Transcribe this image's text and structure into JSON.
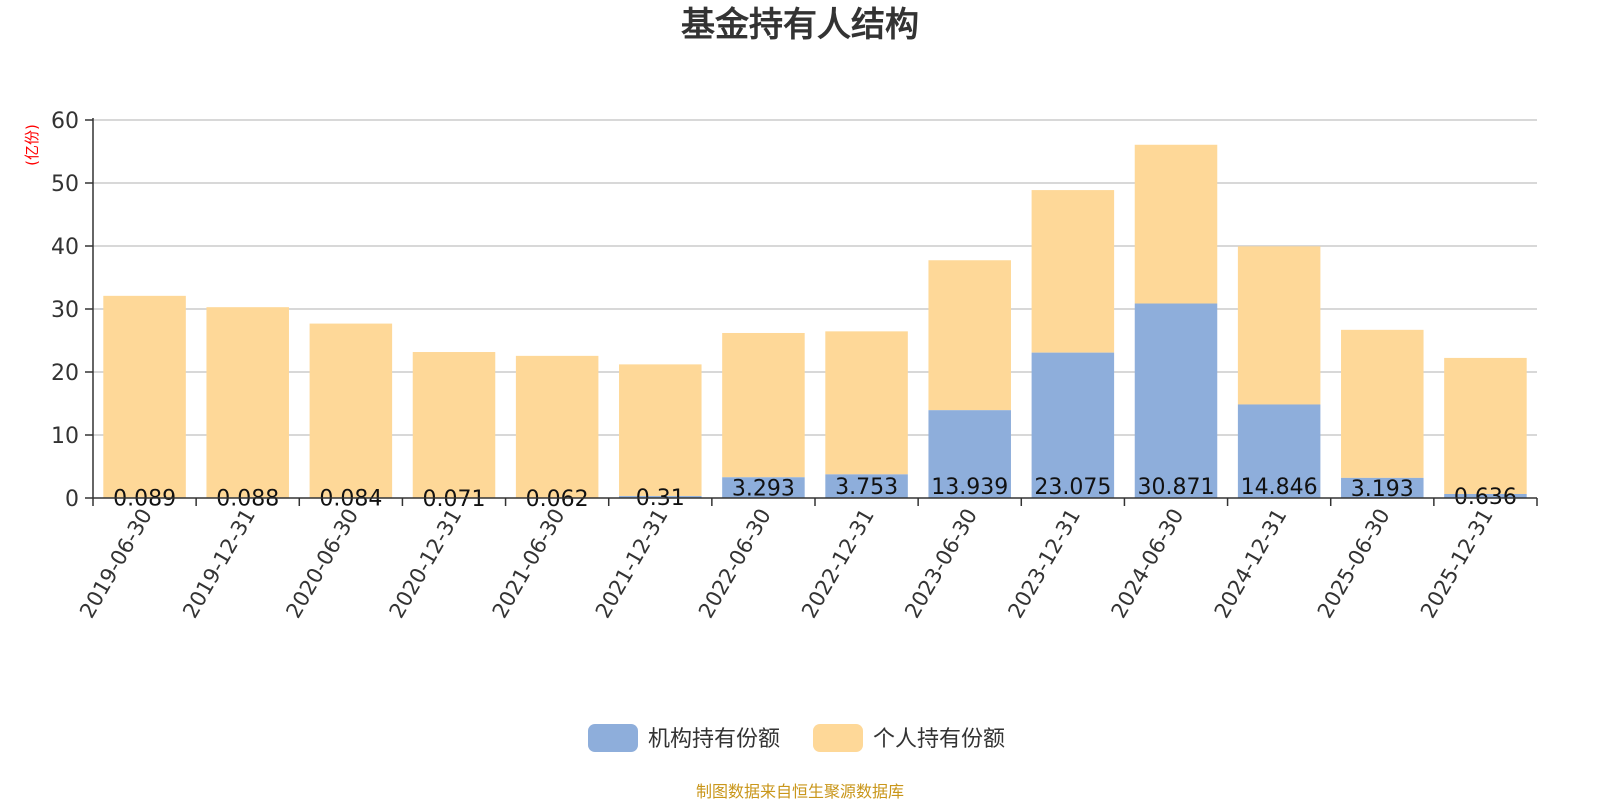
{
  "chart_data": {
    "type": "bar",
    "stacked": true,
    "title": "基金持有人结构",
    "unit_label": "(亿份)",
    "ylim": [
      0,
      60
    ],
    "yticks": [
      0,
      10,
      20,
      30,
      40,
      50,
      60
    ],
    "grid": true,
    "legend_position": "bottom-center",
    "categories": [
      "2019-06-30",
      "2019-12-31",
      "2020-06-30",
      "2020-12-31",
      "2021-06-30",
      "2021-12-31",
      "2022-06-30",
      "2022-12-31",
      "2023-06-30",
      "2023-12-31",
      "2024-06-30",
      "2024-12-31",
      "2025-06-30",
      "2025-12-31"
    ],
    "series": [
      {
        "name": "机构持有份额",
        "color": "#8eaedb",
        "values": [
          0.089,
          0.088,
          0.084,
          0.071,
          0.062,
          0.31,
          3.293,
          3.753,
          13.939,
          23.075,
          30.871,
          14.846,
          3.193,
          0.636
        ],
        "labels": [
          "0.089",
          "0.088",
          "0.084",
          "0.071",
          "0.062",
          "0.31",
          "3.293",
          "3.753",
          "13.939",
          "23.075",
          "30.871",
          "14.846",
          "3.193",
          "0.636"
        ]
      },
      {
        "name": "个人持有份额",
        "color": "#fed898",
        "values": [
          32.0,
          30.2,
          27.6,
          23.1,
          22.5,
          20.9,
          22.9,
          22.7,
          23.8,
          25.8,
          25.2,
          25.1,
          23.5,
          21.6
        ]
      }
    ],
    "source_note": "制图数据来自恒生聚源数据库"
  }
}
